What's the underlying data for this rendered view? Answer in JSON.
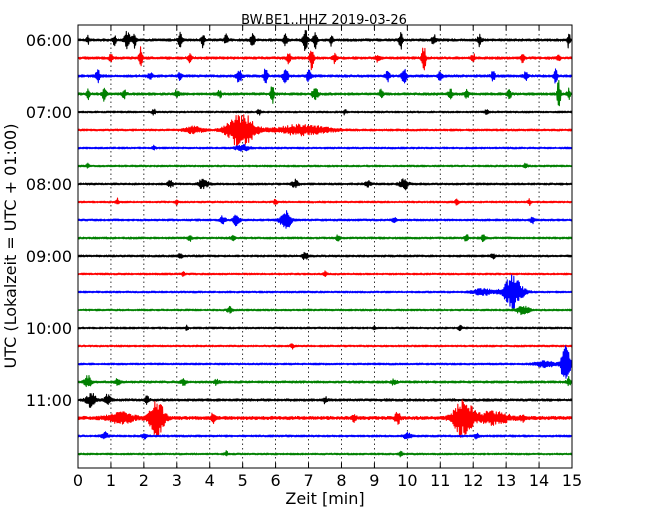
{
  "chart_data": {
    "type": "line",
    "title": "BW.BE1..HHZ 2019-03-26",
    "xlabel": "Zeit  [min]",
    "ylabel": "UTC (Lokalzeit = UTC + 01:00)",
    "xlim": [
      0,
      15
    ],
    "x_ticks": [
      0,
      1,
      2,
      3,
      4,
      5,
      6,
      7,
      8,
      9,
      10,
      11,
      12,
      13,
      14,
      15
    ],
    "x_tick_labels": [
      "0",
      "1",
      "2",
      "3",
      "4",
      "5",
      "6",
      "7",
      "8",
      "9",
      "10",
      "11",
      "12",
      "13",
      "14",
      "15"
    ],
    "y_tick_labels": [
      "06:00",
      "07:00",
      "08:00",
      "09:00",
      "10:00",
      "11:00"
    ],
    "row_interval_minutes": 15,
    "grid": true,
    "color_cycle": [
      "#000000",
      "#ff0000",
      "#0000ff",
      "#008000"
    ],
    "series": [
      {
        "row_start": "06:00",
        "color": "#000000",
        "noise": 1.2,
        "events": [
          {
            "minute": 0.3,
            "amp": 4,
            "width": 0.04
          },
          {
            "minute": 1.1,
            "amp": 6,
            "width": 0.05
          },
          {
            "minute": 1.5,
            "amp": 10,
            "width": 0.08
          },
          {
            "minute": 1.7,
            "amp": 8,
            "width": 0.06
          },
          {
            "minute": 3.1,
            "amp": 7,
            "width": 0.06
          },
          {
            "minute": 3.8,
            "amp": 8,
            "width": 0.05
          },
          {
            "minute": 4.5,
            "amp": 5,
            "width": 0.06
          },
          {
            "minute": 5.3,
            "amp": 7,
            "width": 0.07
          },
          {
            "minute": 6.3,
            "amp": 5,
            "width": 0.06
          },
          {
            "minute": 6.9,
            "amp": 10,
            "width": 0.07
          },
          {
            "minute": 7.2,
            "amp": 9,
            "width": 0.06
          },
          {
            "minute": 7.7,
            "amp": 6,
            "width": 0.05
          },
          {
            "minute": 9.8,
            "amp": 9,
            "width": 0.05
          },
          {
            "minute": 10.8,
            "amp": 6,
            "width": 0.06
          },
          {
            "minute": 12.2,
            "amp": 6,
            "width": 0.06
          },
          {
            "minute": 14.9,
            "amp": 9,
            "width": 0.04
          }
        ]
      },
      {
        "row_start": "06:15",
        "color": "#ff0000",
        "noise": 1.2,
        "events": [
          {
            "minute": 1.0,
            "amp": 5,
            "width": 0.05
          },
          {
            "minute": 1.9,
            "amp": 11,
            "width": 0.05
          },
          {
            "minute": 3.4,
            "amp": 4,
            "width": 0.06
          },
          {
            "minute": 6.4,
            "amp": 6,
            "width": 0.06
          },
          {
            "minute": 7.1,
            "amp": 13,
            "width": 0.06
          },
          {
            "minute": 7.8,
            "amp": 5,
            "width": 0.06
          },
          {
            "minute": 9.1,
            "amp": 4,
            "width": 0.06
          },
          {
            "minute": 10.5,
            "amp": 14,
            "width": 0.06
          },
          {
            "minute": 12.0,
            "amp": 4,
            "width": 0.06
          },
          {
            "minute": 13.5,
            "amp": 4,
            "width": 0.06
          },
          {
            "minute": 14.6,
            "amp": 4,
            "width": 0.05
          }
        ]
      },
      {
        "row_start": "06:30",
        "color": "#0000ff",
        "noise": 1.2,
        "events": [
          {
            "minute": 0.6,
            "amp": 6,
            "width": 0.06
          },
          {
            "minute": 2.2,
            "amp": 4,
            "width": 0.06
          },
          {
            "minute": 3.1,
            "amp": 4,
            "width": 0.06
          },
          {
            "minute": 4.9,
            "amp": 7,
            "width": 0.08
          },
          {
            "minute": 5.7,
            "amp": 10,
            "width": 0.05
          },
          {
            "minute": 6.3,
            "amp": 7,
            "width": 0.08
          },
          {
            "minute": 7.0,
            "amp": 6,
            "width": 0.07
          },
          {
            "minute": 9.4,
            "amp": 5,
            "width": 0.07
          },
          {
            "minute": 9.9,
            "amp": 8,
            "width": 0.07
          },
          {
            "minute": 11.0,
            "amp": 5,
            "width": 0.06
          },
          {
            "minute": 12.6,
            "amp": 5,
            "width": 0.06
          },
          {
            "minute": 13.6,
            "amp": 4,
            "width": 0.06
          },
          {
            "minute": 14.5,
            "amp": 10,
            "width": 0.05
          }
        ]
      },
      {
        "row_start": "06:45",
        "color": "#008000",
        "noise": 1.2,
        "events": [
          {
            "minute": 0.3,
            "amp": 5,
            "width": 0.05
          },
          {
            "minute": 0.8,
            "amp": 7,
            "width": 0.06
          },
          {
            "minute": 1.4,
            "amp": 4,
            "width": 0.06
          },
          {
            "minute": 3.0,
            "amp": 4,
            "width": 0.06
          },
          {
            "minute": 4.3,
            "amp": 4,
            "width": 0.06
          },
          {
            "minute": 5.9,
            "amp": 10,
            "width": 0.05
          },
          {
            "minute": 7.2,
            "amp": 7,
            "width": 0.08
          },
          {
            "minute": 9.2,
            "amp": 4,
            "width": 0.06
          },
          {
            "minute": 11.3,
            "amp": 5,
            "width": 0.06
          },
          {
            "minute": 11.8,
            "amp": 5,
            "width": 0.06
          },
          {
            "minute": 13.1,
            "amp": 5,
            "width": 0.06
          },
          {
            "minute": 14.6,
            "amp": 16,
            "width": 0.05
          },
          {
            "minute": 14.9,
            "amp": 5,
            "width": 0.05
          }
        ]
      },
      {
        "row_start": "07:00",
        "color": "#000000",
        "noise": 0.9,
        "events": [
          {
            "minute": 2.3,
            "amp": 3,
            "width": 0.05
          },
          {
            "minute": 5.5,
            "amp": 3,
            "width": 0.05
          },
          {
            "minute": 8.1,
            "amp": 2.5,
            "width": 0.05
          },
          {
            "minute": 12.4,
            "amp": 2.5,
            "width": 0.05
          }
        ]
      },
      {
        "row_start": "07:15",
        "color": "#ff0000",
        "noise": 1.0,
        "events": [
          {
            "minute": 4.95,
            "amp": 18,
            "width": 0.4
          },
          {
            "minute": 6.8,
            "amp": 5,
            "width": 0.8
          },
          {
            "minute": 3.5,
            "amp": 3,
            "width": 0.3
          }
        ]
      },
      {
        "row_start": "07:30",
        "color": "#0000ff",
        "noise": 0.9,
        "events": [
          {
            "minute": 5.0,
            "amp": 3,
            "width": 0.2
          },
          {
            "minute": 2.3,
            "amp": 2,
            "width": 0.05
          }
        ]
      },
      {
        "row_start": "07:45",
        "color": "#008000",
        "noise": 0.9,
        "events": [
          {
            "minute": 0.3,
            "amp": 3,
            "width": 0.04
          },
          {
            "minute": 13.6,
            "amp": 3,
            "width": 0.05
          }
        ]
      },
      {
        "row_start": "08:00",
        "color": "#000000",
        "noise": 1.0,
        "events": [
          {
            "minute": 2.8,
            "amp": 3,
            "width": 0.1
          },
          {
            "minute": 3.8,
            "amp": 5,
            "width": 0.15
          },
          {
            "minute": 6.6,
            "amp": 4,
            "width": 0.1
          },
          {
            "minute": 8.8,
            "amp": 3,
            "width": 0.08
          },
          {
            "minute": 9.9,
            "amp": 6,
            "width": 0.12
          }
        ]
      },
      {
        "row_start": "08:15",
        "color": "#ff0000",
        "noise": 0.9,
        "events": [
          {
            "minute": 1.2,
            "amp": 4,
            "width": 0.04
          },
          {
            "minute": 3.0,
            "amp": 3,
            "width": 0.05
          },
          {
            "minute": 6.0,
            "amp": 3,
            "width": 0.05
          },
          {
            "minute": 11.5,
            "amp": 3,
            "width": 0.05
          },
          {
            "minute": 13.7,
            "amp": 3,
            "width": 0.05
          }
        ]
      },
      {
        "row_start": "08:30",
        "color": "#0000ff",
        "noise": 1.0,
        "events": [
          {
            "minute": 4.4,
            "amp": 4,
            "width": 0.08
          },
          {
            "minute": 4.8,
            "amp": 5,
            "width": 0.1
          },
          {
            "minute": 6.3,
            "amp": 11,
            "width": 0.15
          },
          {
            "minute": 9.6,
            "amp": 3,
            "width": 0.06
          },
          {
            "minute": 13.8,
            "amp": 3,
            "width": 0.06
          }
        ]
      },
      {
        "row_start": "08:45",
        "color": "#008000",
        "noise": 1.0,
        "events": [
          {
            "minute": 3.4,
            "amp": 3,
            "width": 0.06
          },
          {
            "minute": 4.7,
            "amp": 3,
            "width": 0.06
          },
          {
            "minute": 7.9,
            "amp": 3,
            "width": 0.06
          },
          {
            "minute": 11.8,
            "amp": 4,
            "width": 0.06
          },
          {
            "minute": 12.3,
            "amp": 3,
            "width": 0.06
          }
        ]
      },
      {
        "row_start": "09:00",
        "color": "#000000",
        "noise": 1.0,
        "events": [
          {
            "minute": 3.1,
            "amp": 2.5,
            "width": 0.06
          },
          {
            "minute": 6.9,
            "amp": 4,
            "width": 0.08
          },
          {
            "minute": 12.6,
            "amp": 3,
            "width": 0.06
          }
        ]
      },
      {
        "row_start": "09:15",
        "color": "#ff0000",
        "noise": 0.9,
        "events": [
          {
            "minute": 3.2,
            "amp": 2.5,
            "width": 0.05
          },
          {
            "minute": 7.5,
            "amp": 2.5,
            "width": 0.05
          }
        ]
      },
      {
        "row_start": "09:30",
        "color": "#0000ff",
        "noise": 0.9,
        "events": [
          {
            "minute": 13.2,
            "amp": 17,
            "width": 0.28
          },
          {
            "minute": 12.3,
            "amp": 3,
            "width": 0.3
          }
        ]
      },
      {
        "row_start": "09:45",
        "color": "#008000",
        "noise": 0.9,
        "events": [
          {
            "minute": 4.6,
            "amp": 3,
            "width": 0.08
          },
          {
            "minute": 13.5,
            "amp": 4,
            "width": 0.2
          }
        ]
      },
      {
        "row_start": "10:00",
        "color": "#000000",
        "noise": 0.9,
        "events": [
          {
            "minute": 3.3,
            "amp": 3,
            "width": 0.04
          },
          {
            "minute": 9.0,
            "amp": 3,
            "width": 0.04
          },
          {
            "minute": 11.6,
            "amp": 3,
            "width": 0.05
          }
        ]
      },
      {
        "row_start": "10:15",
        "color": "#ff0000",
        "noise": 0.9,
        "events": [
          {
            "minute": 6.5,
            "amp": 2.5,
            "width": 0.05
          }
        ]
      },
      {
        "row_start": "10:30",
        "color": "#0000ff",
        "noise": 0.9,
        "events": [
          {
            "minute": 14.8,
            "amp": 18,
            "width": 0.14
          },
          {
            "minute": 14.2,
            "amp": 3,
            "width": 0.3
          }
        ]
      },
      {
        "row_start": "10:45",
        "color": "#008000",
        "noise": 1.1,
        "events": [
          {
            "minute": 0.3,
            "amp": 6,
            "width": 0.1
          },
          {
            "minute": 1.2,
            "amp": 3,
            "width": 0.08
          },
          {
            "minute": 3.2,
            "amp": 3,
            "width": 0.08
          },
          {
            "minute": 4.2,
            "amp": 3,
            "width": 0.08
          },
          {
            "minute": 9.6,
            "amp": 3,
            "width": 0.08
          },
          {
            "minute": 14.9,
            "amp": 5,
            "width": 0.06
          }
        ]
      },
      {
        "row_start": "11:00",
        "color": "#000000",
        "noise": 1.2,
        "events": [
          {
            "minute": 0.4,
            "amp": 7,
            "width": 0.14
          },
          {
            "minute": 0.9,
            "amp": 5,
            "width": 0.1
          },
          {
            "minute": 2.1,
            "amp": 4,
            "width": 0.06
          },
          {
            "minute": 7.5,
            "amp": 3,
            "width": 0.06
          }
        ]
      },
      {
        "row_start": "11:15",
        "color": "#ff0000",
        "noise": 1.6,
        "events": [
          {
            "minute": 2.4,
            "amp": 18,
            "width": 0.22
          },
          {
            "minute": 1.3,
            "amp": 5,
            "width": 0.4
          },
          {
            "minute": 11.7,
            "amp": 21,
            "width": 0.28
          },
          {
            "minute": 12.6,
            "amp": 6,
            "width": 0.5
          },
          {
            "minute": 4.1,
            "amp": 5,
            "width": 0.06
          },
          {
            "minute": 9.7,
            "amp": 6,
            "width": 0.08
          },
          {
            "minute": 8.4,
            "amp": 4,
            "width": 0.06
          },
          {
            "minute": 13.5,
            "amp": 4,
            "width": 0.05
          }
        ]
      },
      {
        "row_start": "11:30",
        "color": "#0000ff",
        "noise": 1.0,
        "events": [
          {
            "minute": 0.8,
            "amp": 4,
            "width": 0.1
          },
          {
            "minute": 2.0,
            "amp": 3,
            "width": 0.08
          },
          {
            "minute": 10.0,
            "amp": 4,
            "width": 0.1
          },
          {
            "minute": 12.1,
            "amp": 3,
            "width": 0.06
          }
        ]
      },
      {
        "row_start": "11:45",
        "color": "#008000",
        "noise": 0.9,
        "events": [
          {
            "minute": 4.5,
            "amp": 2.5,
            "width": 0.05
          },
          {
            "minute": 9.8,
            "amp": 2.5,
            "width": 0.05
          }
        ]
      }
    ]
  }
}
